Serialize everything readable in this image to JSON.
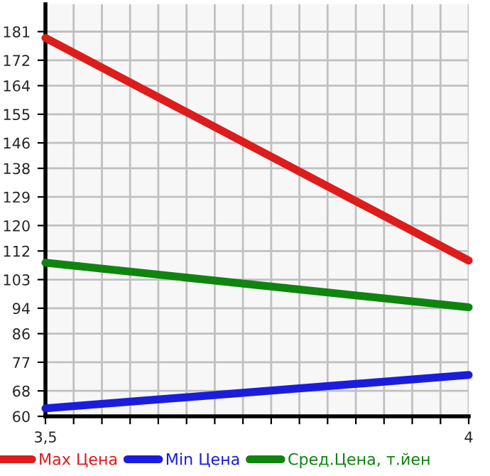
{
  "chart_data": {
    "type": "line",
    "x": [
      3.5,
      4
    ],
    "series": [
      {
        "name": "Max Цена",
        "color": "#dd1c1c",
        "values": [
          179,
          109
        ]
      },
      {
        "name": "Min Цена",
        "color": "#1c1cdd",
        "values": [
          62.5,
          73
        ]
      },
      {
        "name": "Сред.Цена, т.йен",
        "color": "#0f850f",
        "values": [
          108.3,
          94.3
        ]
      }
    ],
    "xlim": [
      3.5,
      4
    ],
    "xticks": [
      {
        "value": 3.5,
        "label": "3,5"
      },
      {
        "value": 3.5333,
        "label": null
      },
      {
        "value": 3.5667,
        "label": null
      },
      {
        "value": 3.6,
        "label": null
      },
      {
        "value": 3.6333,
        "label": null
      },
      {
        "value": 3.6667,
        "label": null
      },
      {
        "value": 3.7,
        "label": null
      },
      {
        "value": 3.7333,
        "label": null
      },
      {
        "value": 3.7667,
        "label": null
      },
      {
        "value": 3.8,
        "label": null
      },
      {
        "value": 3.8333,
        "label": null
      },
      {
        "value": 3.8667,
        "label": null
      },
      {
        "value": 3.9,
        "label": null
      },
      {
        "value": 3.9333,
        "label": null
      },
      {
        "value": 3.9667,
        "label": null
      },
      {
        "value": 4,
        "label": "4"
      }
    ],
    "ylim": [
      60,
      189.6
    ],
    "yticks": [
      60,
      68,
      77,
      86,
      94,
      103,
      112,
      120,
      129,
      138,
      146,
      155,
      164,
      172,
      181
    ],
    "grid": true,
    "legend": "bottom",
    "marker": "none",
    "line_style": "solid"
  }
}
